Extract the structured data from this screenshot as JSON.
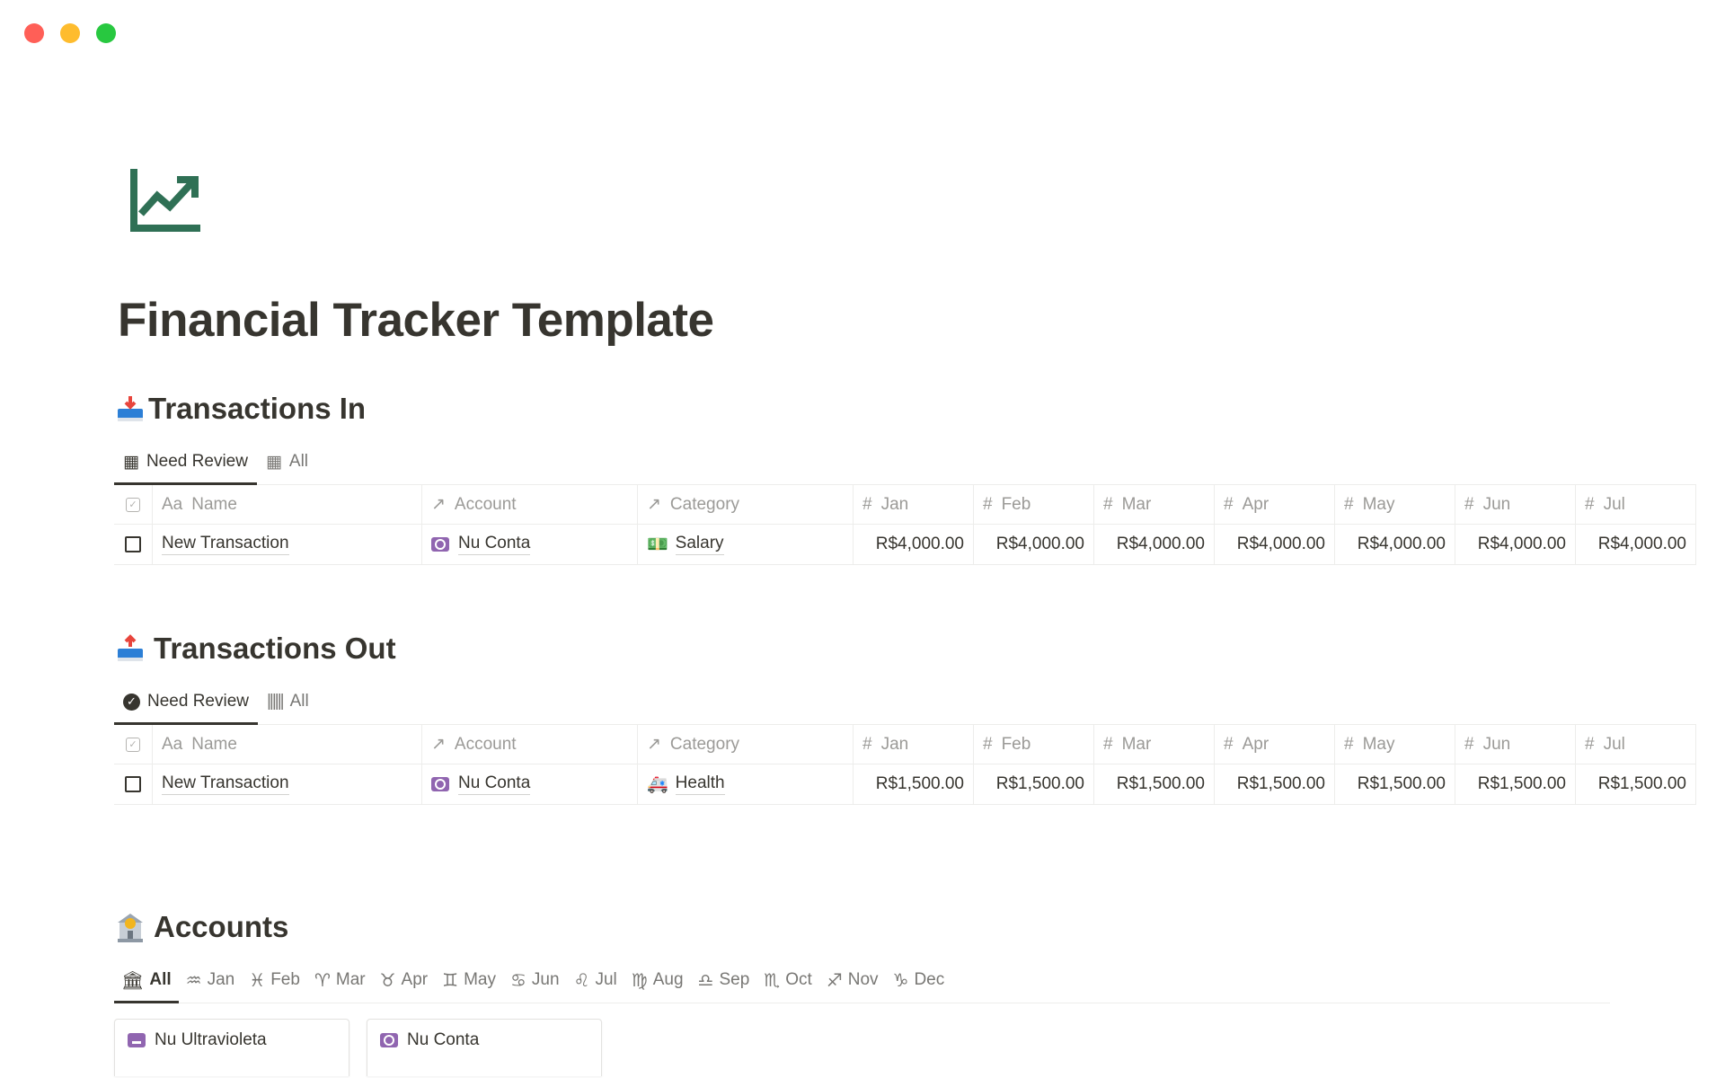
{
  "window": {
    "controls": [
      "close",
      "minimize",
      "maximize"
    ],
    "colors": {
      "close": "#ff5f57",
      "minimize": "#febc2e",
      "maximize": "#28c840"
    }
  },
  "page": {
    "icon": "chart-line-up-icon",
    "icon_color": "#2f7055",
    "title": "Financial Tracker Template"
  },
  "transactions_in": {
    "heading": "Transactions In",
    "heading_icon": "inbox-tray-icon",
    "tabs": [
      {
        "label": "Need Review",
        "icon": "table-icon",
        "active": true
      },
      {
        "label": "All",
        "icon": "table-icon",
        "active": false
      }
    ],
    "columns": [
      {
        "label": "Name",
        "icon": "Aa"
      },
      {
        "label": "Account",
        "icon": "↗"
      },
      {
        "label": "Category",
        "icon": "↗"
      },
      {
        "label": "Jan",
        "icon": "#"
      },
      {
        "label": "Feb",
        "icon": "#"
      },
      {
        "label": "Mar",
        "icon": "#"
      },
      {
        "label": "Apr",
        "icon": "#"
      },
      {
        "label": "May",
        "icon": "#"
      },
      {
        "label": "Jun",
        "icon": "#"
      },
      {
        "label": "Jul",
        "icon": "#"
      }
    ],
    "rows": [
      {
        "checked": false,
        "name": "New Transaction",
        "account": "Nu Conta",
        "category": "Salary",
        "category_icon": "dollar-banknote-icon",
        "months": [
          "R$4,000.00",
          "R$4,000.00",
          "R$4,000.00",
          "R$4,000.00",
          "R$4,000.00",
          "R$4,000.00",
          "R$4,000.00"
        ]
      }
    ]
  },
  "transactions_out": {
    "heading": "Transactions Out",
    "heading_icon": "outbox-tray-icon",
    "tabs": [
      {
        "label": "Need Review",
        "icon": "check-circle-icon",
        "active": true
      },
      {
        "label": "All",
        "icon": "barcode-icon",
        "active": false
      }
    ],
    "columns": [
      {
        "label": "Name",
        "icon": "Aa"
      },
      {
        "label": "Account",
        "icon": "↗"
      },
      {
        "label": "Category",
        "icon": "↗"
      },
      {
        "label": "Jan",
        "icon": "#"
      },
      {
        "label": "Feb",
        "icon": "#"
      },
      {
        "label": "Mar",
        "icon": "#"
      },
      {
        "label": "Apr",
        "icon": "#"
      },
      {
        "label": "May",
        "icon": "#"
      },
      {
        "label": "Jun",
        "icon": "#"
      },
      {
        "label": "Jul",
        "icon": "#"
      }
    ],
    "rows": [
      {
        "checked": false,
        "name": "New Transaction",
        "account": "Nu Conta",
        "category": "Health",
        "category_icon": "ambulance-icon",
        "months": [
          "R$1,500.00",
          "R$1,500.00",
          "R$1,500.00",
          "R$1,500.00",
          "R$1,500.00",
          "R$1,500.00",
          "R$1,500.00"
        ]
      }
    ]
  },
  "accounts": {
    "heading": "Accounts",
    "heading_icon": "bank-icon",
    "tabs": [
      {
        "label": "All",
        "glyph": "🏛",
        "active": true
      },
      {
        "label": "Jan",
        "glyph": "♒"
      },
      {
        "label": "Feb",
        "glyph": "♓"
      },
      {
        "label": "Mar",
        "glyph": "♈"
      },
      {
        "label": "Apr",
        "glyph": "♉"
      },
      {
        "label": "May",
        "glyph": "♊"
      },
      {
        "label": "Jun",
        "glyph": "♋"
      },
      {
        "label": "Jul",
        "glyph": "♌"
      },
      {
        "label": "Aug",
        "glyph": "♍"
      },
      {
        "label": "Sep",
        "glyph": "♎"
      },
      {
        "label": "Oct",
        "glyph": "♏"
      },
      {
        "label": "Nov",
        "glyph": "♐"
      },
      {
        "label": "Dec",
        "glyph": "♑"
      }
    ],
    "cards": [
      {
        "title": "Nu Ultravioleta",
        "icon": "credit-card-icon"
      },
      {
        "title": "Nu Conta",
        "icon": "banknote-icon"
      }
    ],
    "accent": "#9065b0"
  }
}
